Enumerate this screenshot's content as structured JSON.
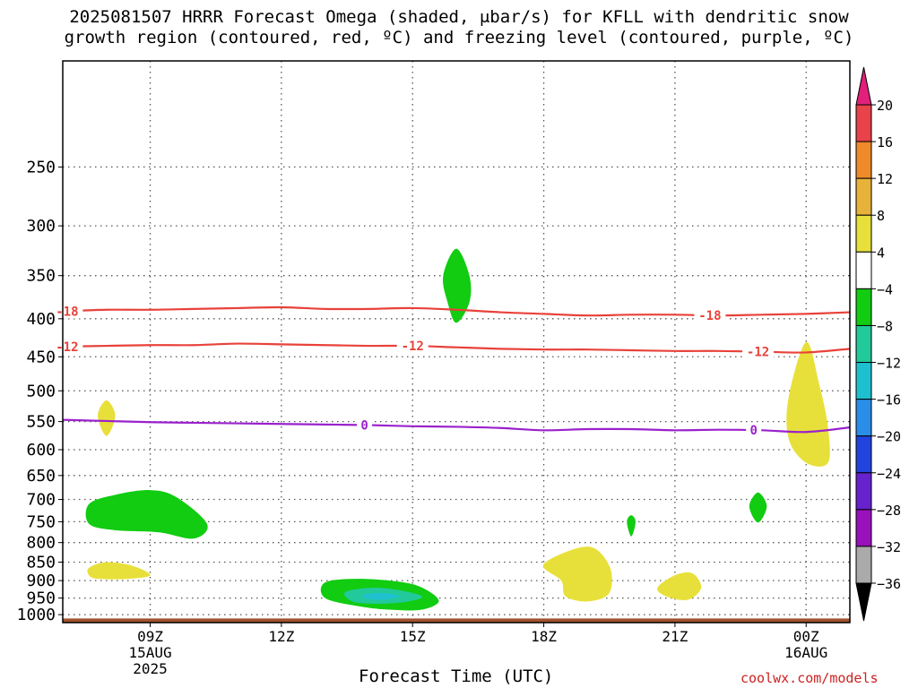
{
  "title_line1": "2025081507 HRRR Forecast Omega (shaded, μbar/s) for KFLL with dendritic snow",
  "title_line2": "growth region (contoured, red, ºC) and freezing level (contoured, purple, ºC)",
  "xlabel": "Forecast Time (UTC)",
  "credit": "coolwx.com/models",
  "chart_data": {
    "type": "time-height contour",
    "x_unit": "hours since 2025-08-15 07Z",
    "xlim": [
      7,
      25
    ],
    "y_unit": "hPa",
    "ylim": [
      1025,
      180
    ],
    "y_ticks": [
      250,
      300,
      350,
      400,
      450,
      500,
      550,
      600,
      650,
      700,
      750,
      800,
      850,
      900,
      950,
      1000
    ],
    "x_ticks": [
      {
        "x": 9,
        "lines": [
          "09Z",
          "15AUG",
          "2025"
        ]
      },
      {
        "x": 12,
        "lines": [
          "12Z"
        ]
      },
      {
        "x": 15,
        "lines": [
          "15Z"
        ]
      },
      {
        "x": 18,
        "lines": [
          "18Z"
        ]
      },
      {
        "x": 21,
        "lines": [
          "21Z"
        ]
      },
      {
        "x": 24,
        "lines": [
          "00Z",
          "16AUG"
        ]
      }
    ],
    "colorbar": {
      "labels": [
        "20",
        "16",
        "12",
        "8",
        "4",
        "−4",
        "−8",
        "−12",
        "−16",
        "−20",
        "−24",
        "−28",
        "−32",
        "−36"
      ],
      "bands": [
        {
          "color": "#e8424a"
        },
        {
          "color": "#ef8a2a"
        },
        {
          "color": "#e6b23a"
        },
        {
          "color": "#e8e03a"
        },
        {
          "color": "#ffffff"
        },
        {
          "color": "#11cc11"
        },
        {
          "color": "#22c99a"
        },
        {
          "color": "#1ec0d0"
        },
        {
          "color": "#2a8ee8"
        },
        {
          "color": "#2244dd"
        },
        {
          "color": "#6622cc"
        },
        {
          "color": "#9911bb"
        },
        {
          "color": "#aaaaaa"
        }
      ],
      "top_arrow_color": "#e0207a",
      "bottom_arrow_color": "#000000"
    },
    "contour_lines": [
      {
        "label": "-18",
        "color": "#e8423a",
        "points": [
          [
            7,
            391
          ],
          [
            8,
            389
          ],
          [
            9,
            389
          ],
          [
            10,
            388
          ],
          [
            11,
            387
          ],
          [
            12,
            386
          ],
          [
            13,
            388
          ],
          [
            14,
            388
          ],
          [
            15,
            387
          ],
          [
            16,
            389
          ],
          [
            17,
            392
          ],
          [
            18,
            394
          ],
          [
            19,
            396
          ],
          [
            20,
            395
          ],
          [
            21,
            395
          ],
          [
            22,
            396
          ],
          [
            23,
            395
          ],
          [
            24,
            394
          ],
          [
            25,
            392
          ]
        ],
        "label_x": [
          7.1,
          21.8
        ]
      },
      {
        "label": "-12",
        "color": "#e8423a",
        "points": [
          [
            7,
            436
          ],
          [
            8,
            435
          ],
          [
            9,
            434
          ],
          [
            10,
            434
          ],
          [
            11,
            432
          ],
          [
            12,
            433
          ],
          [
            13,
            434
          ],
          [
            14,
            435
          ],
          [
            15,
            435
          ],
          [
            16,
            437
          ],
          [
            17,
            439
          ],
          [
            18,
            440
          ],
          [
            19,
            440
          ],
          [
            20,
            441
          ],
          [
            21,
            442
          ],
          [
            22,
            442
          ],
          [
            23,
            443
          ],
          [
            24,
            444
          ],
          [
            25,
            439
          ]
        ],
        "label_x": [
          7.1,
          15.0,
          22.9
        ]
      },
      {
        "label": "0",
        "color": "#9a22cc",
        "points": [
          [
            7,
            547
          ],
          [
            8,
            549
          ],
          [
            9,
            551
          ],
          [
            10,
            552
          ],
          [
            11,
            553
          ],
          [
            12,
            554
          ],
          [
            13,
            555
          ],
          [
            14,
            556
          ],
          [
            15,
            558
          ],
          [
            16,
            559
          ],
          [
            17,
            561
          ],
          [
            18,
            565
          ],
          [
            19,
            563
          ],
          [
            20,
            563
          ],
          [
            21,
            565
          ],
          [
            22,
            564
          ],
          [
            23,
            565
          ],
          [
            24,
            568
          ],
          [
            25,
            560
          ]
        ],
        "label_x": [
          13.9,
          22.8
        ]
      }
    ],
    "omega_regions": [
      {
        "value_range": "-4 to -8",
        "color": "#11cc11",
        "points": [
          [
            16.0,
            322
          ],
          [
            16.3,
            350
          ],
          [
            16.3,
            380
          ],
          [
            16.0,
            405
          ],
          [
            15.8,
            380
          ],
          [
            15.7,
            350
          ]
        ]
      },
      {
        "value_range": "-4 to -8",
        "color": "#11cc11",
        "points": [
          [
            7.6,
            710
          ],
          [
            8.2,
            690
          ],
          [
            9.0,
            680
          ],
          [
            9.6,
            695
          ],
          [
            10.3,
            755
          ],
          [
            10.0,
            790
          ],
          [
            9.2,
            775
          ],
          [
            8.2,
            770
          ],
          [
            7.6,
            755
          ]
        ]
      },
      {
        "value_range": "-4 to -8",
        "color": "#11cc11",
        "points": [
          [
            13.0,
            905
          ],
          [
            13.8,
            895
          ],
          [
            14.8,
            905
          ],
          [
            15.3,
            925
          ],
          [
            15.6,
            960
          ],
          [
            15.2,
            985
          ],
          [
            14.5,
            985
          ],
          [
            13.8,
            975
          ],
          [
            13.0,
            950
          ]
        ]
      },
      {
        "value_range": "-8 to -12",
        "color": "#22c99a",
        "points": [
          [
            13.5,
            930
          ],
          [
            14.2,
            920
          ],
          [
            15.0,
            935
          ],
          [
            15.2,
            950
          ],
          [
            14.6,
            965
          ],
          [
            13.8,
            965
          ],
          [
            13.5,
            950
          ]
        ]
      },
      {
        "value_range": "-12 to -16",
        "color": "#1ec0d0",
        "points": [
          [
            13.9,
            940
          ],
          [
            14.3,
            935
          ],
          [
            14.7,
            945
          ],
          [
            14.3,
            955
          ],
          [
            13.9,
            950
          ]
        ]
      },
      {
        "value_range": "-4 to -8",
        "color": "#11cc11",
        "points": [
          [
            20.0,
            735
          ],
          [
            20.1,
            750
          ],
          [
            20.0,
            785
          ],
          [
            19.9,
            750
          ]
        ]
      },
      {
        "value_range": "-4 to -8",
        "color": "#11cc11",
        "points": [
          [
            22.9,
            685
          ],
          [
            23.1,
            715
          ],
          [
            22.9,
            752
          ],
          [
            22.7,
            715
          ]
        ]
      },
      {
        "value_range": "4 to 8",
        "color": "#e8e03a",
        "points": [
          [
            8.0,
            515
          ],
          [
            8.2,
            540
          ],
          [
            8.0,
            575
          ],
          [
            7.8,
            540
          ]
        ]
      },
      {
        "value_range": "4 to 8",
        "color": "#e8e03a",
        "points": [
          [
            7.6,
            865
          ],
          [
            8.0,
            850
          ],
          [
            8.6,
            860
          ],
          [
            9.0,
            885
          ],
          [
            8.5,
            895
          ],
          [
            7.8,
            895
          ],
          [
            7.6,
            885
          ]
        ]
      },
      {
        "value_range": "4 to 8",
        "color": "#e8e03a",
        "points": [
          [
            24.0,
            430
          ],
          [
            24.3,
            490
          ],
          [
            24.5,
            560
          ],
          [
            24.5,
            625
          ],
          [
            24.0,
            625
          ],
          [
            23.6,
            580
          ],
          [
            23.6,
            510
          ]
        ]
      },
      {
        "value_range": "4 to 8",
        "color": "#e8e03a",
        "points": [
          [
            18.0,
            855
          ],
          [
            19.0,
            810
          ],
          [
            19.5,
            860
          ],
          [
            19.5,
            935
          ],
          [
            19.0,
            960
          ],
          [
            18.5,
            945
          ],
          [
            18.4,
            900
          ]
        ]
      },
      {
        "value_range": "4 to 8",
        "color": "#e8e03a",
        "points": [
          [
            21.0,
            885
          ],
          [
            21.4,
            880
          ],
          [
            21.6,
            920
          ],
          [
            21.3,
            955
          ],
          [
            20.8,
            945
          ],
          [
            20.6,
            920
          ]
        ]
      }
    ],
    "surface": {
      "color": "#a0522d",
      "from": 1012
    }
  }
}
